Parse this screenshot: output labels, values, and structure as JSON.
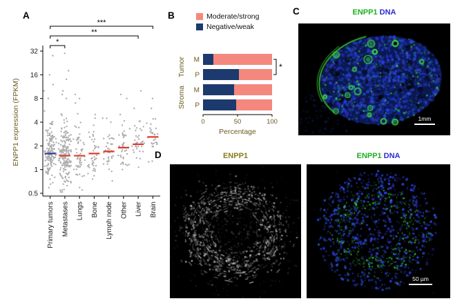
{
  "figure": {
    "background": "#ffffff",
    "axis_label_color": "#6b5a1e",
    "tick_label_color": "#1a1a1a"
  },
  "panel_a": {
    "label": "A",
    "ylabel": "ENPP1 expression (FPKM)",
    "ytick_labels": [
      "32",
      "16",
      "8",
      "4",
      "2",
      "1",
      "0.5"
    ],
    "ytick_values": [
      32,
      16,
      8,
      4,
      2,
      1,
      0.5
    ],
    "point_color": "#999999",
    "groups": [
      {
        "n": 150,
        "spread": 0.62,
        "outliers": [
          28,
          16,
          12,
          10,
          8
        ],
        "median_color": "#2f3d9e"
      },
      {
        "n": 190,
        "spread": 0.68,
        "outliers": [
          30,
          18,
          14,
          10,
          9,
          8
        ],
        "median_color": "#e0392a"
      },
      {
        "n": 55,
        "spread": 0.66,
        "outliers": [
          9,
          8,
          7
        ],
        "median_color": "#e0392a"
      },
      {
        "n": 40,
        "spread": 0.55,
        "outliers": [
          5,
          4.5
        ],
        "median_color": "#e0392a"
      },
      {
        "n": 38,
        "spread": 0.5,
        "outliers": [
          4.5,
          4
        ],
        "median_color": "#e0392a"
      },
      {
        "n": 42,
        "spread": 0.6,
        "outliers": [
          9,
          8,
          5
        ],
        "median_color": "#e0392a"
      },
      {
        "n": 36,
        "spread": 0.55,
        "outliers": [
          10,
          6
        ],
        "median_color": "#e0392a"
      },
      {
        "n": 28,
        "spread": 0.5,
        "outliers": [
          8,
          6
        ],
        "median_color": "#e0392a"
      }
    ],
    "significance": [
      {
        "from": 0,
        "to": 7,
        "label": "***"
      },
      {
        "from": 0,
        "to": 6,
        "label": "**"
      },
      {
        "from": 0,
        "to": 1,
        "label": "*"
      }
    ]
  },
  "panel_b": {
    "label": "B",
    "legend": [
      {
        "label": "Moderate/strong",
        "color": "#f5887e"
      },
      {
        "label": "Negative/weak",
        "color": "#1c3a6e"
      }
    ],
    "row_labels": [
      "M",
      "P",
      "M",
      "P"
    ],
    "group_labels": [
      "Tumor",
      "Stroma"
    ],
    "xlabel": "Percentage",
    "xtick_labels": [
      "0",
      "50",
      "100"
    ],
    "significance_label": "*"
  },
  "panel_c": {
    "label": "C",
    "title_parts": [
      {
        "text": "ENPP1 ",
        "color": "#1fae1f"
      },
      {
        "text": "DNA",
        "color": "#2a2ad2"
      }
    ],
    "scale_bar_label": "1mm",
    "stain_colors": {
      "ENPP1": "#1fae1f",
      "DNA": "#2a2ad2"
    }
  },
  "panel_d": {
    "label": "D",
    "left_title_parts": [
      {
        "text": "ENPP1",
        "color": "#8a7d1c"
      }
    ],
    "right_title_parts": [
      {
        "text": "ENPP1 ",
        "color": "#1fae1f"
      },
      {
        "text": "DNA",
        "color": "#2a2ad2"
      }
    ],
    "scale_bar_label": "50 µm"
  },
  "chart_data": [
    {
      "type": "scatter",
      "subtype": "jitter-dot-plot",
      "ylabel": "ENPP1 expression (FPKM)",
      "yscale": "log2",
      "ylim": [
        0.5,
        32
      ],
      "yticks": [
        0.5,
        1,
        2,
        4,
        8,
        16,
        32
      ],
      "categories": [
        "Primary tumors",
        "Metastases",
        "Lungs",
        "Bone",
        "Lymph node",
        "Other",
        "Liver",
        "Brain"
      ],
      "medians": [
        1.6,
        1.5,
        1.5,
        1.6,
        1.7,
        1.9,
        2.1,
        2.6
      ],
      "significance": [
        {
          "groups": [
            "Primary tumors",
            "Metastases"
          ],
          "label": "*"
        },
        {
          "groups": [
            "Primary tumors",
            "Liver"
          ],
          "label": "**"
        },
        {
          "groups": [
            "Primary tumors",
            "Brain"
          ],
          "label": "***"
        }
      ],
      "legend_position": "none",
      "grid": false
    },
    {
      "type": "bar",
      "stacked": true,
      "orientation": "horizontal",
      "unit": "percent",
      "categories": [
        "Tumor M",
        "Tumor P",
        "Stroma M",
        "Stroma P"
      ],
      "series": [
        {
          "name": "Negative/weak",
          "color": "#1c3a6e",
          "values": [
            15,
            52,
            45,
            48
          ]
        },
        {
          "name": "Moderate/strong",
          "color": "#f5887e",
          "values": [
            85,
            48,
            55,
            52
          ]
        }
      ],
      "xlabel": "Percentage",
      "xlim": [
        0,
        100
      ],
      "xticks": [
        0,
        50,
        100
      ],
      "significance": [
        {
          "groups": [
            "Tumor M",
            "Tumor P"
          ],
          "label": "*"
        }
      ],
      "legend_position": "top",
      "grid": false
    }
  ]
}
